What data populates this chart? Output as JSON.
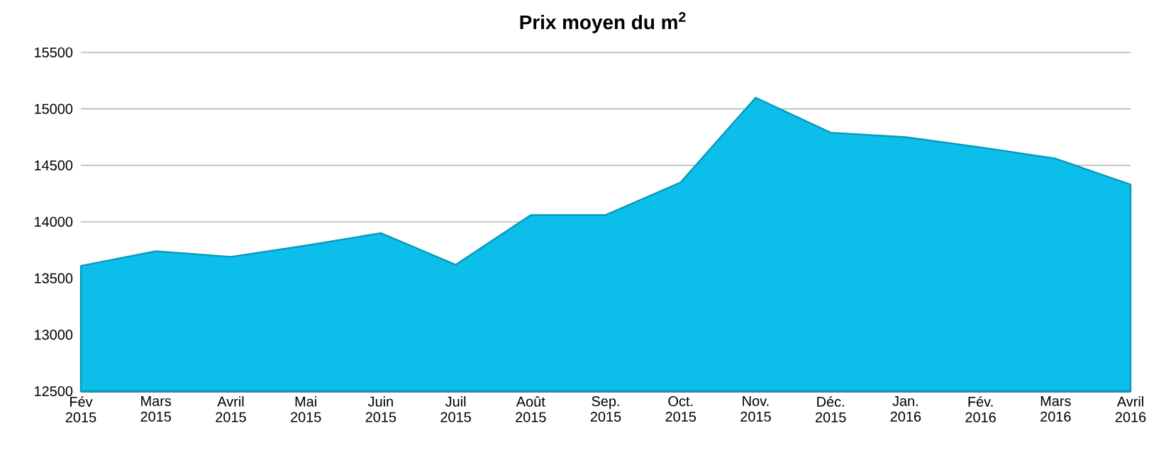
{
  "chart_data": {
    "type": "area",
    "title": "Prix moyen du m$^{2}$",
    "categories": [
      "Fév 2015",
      "Mars 2015",
      "Avril 2015",
      "Mai 2015",
      "Juin 2015",
      "Juil 2015",
      "Août 2015",
      "Sep. 2015",
      "Oct. 2015",
      "Nov. 2015",
      "Déc. 2015",
      "Jan. 2016",
      "Fév. 2016",
      "Mars 2016",
      "Avril 2016"
    ],
    "series": [
      {
        "color": "#0bbfea",
        "values": [
          13610,
          13740,
          13690,
          13790,
          13900,
          13620,
          14060,
          14060,
          14350,
          15100,
          14790,
          14750,
          14660,
          14560,
          14330
        ]
      }
    ],
    "ylim": [
      12500,
      15500
    ],
    "yticks": [
      12500,
      13000,
      13500,
      14000,
      14500,
      15000,
      15500
    ],
    "grid": "y"
  }
}
